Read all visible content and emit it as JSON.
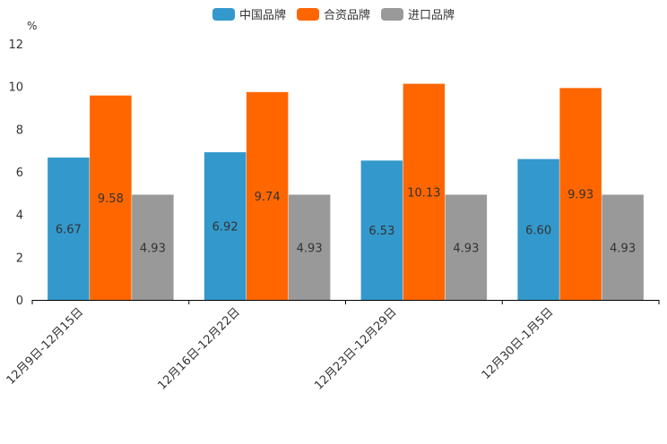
{
  "chart_data": {
    "type": "bar",
    "unit": "%",
    "categories": [
      "12月9日-12月15日",
      "12月16日-12月22日",
      "12月23日-12月29日",
      "12月30日-1月5日"
    ],
    "series": [
      {
        "name": "中国品牌",
        "color": "#3399cc",
        "values": [
          6.67,
          6.92,
          6.53,
          6.6
        ],
        "labels": [
          "6.67",
          "6.92",
          "6.53",
          "6.60"
        ]
      },
      {
        "name": "合资品牌",
        "color": "#ff6600",
        "values": [
          9.58,
          9.74,
          10.13,
          9.93
        ],
        "labels": [
          "9.58",
          "9.74",
          "10.13",
          "9.93"
        ]
      },
      {
        "name": "进口品牌",
        "color": "#999999",
        "values": [
          4.93,
          4.93,
          4.93,
          4.93
        ],
        "labels": [
          "4.93",
          "4.93",
          "4.93",
          "4.93"
        ]
      }
    ],
    "ylim": [
      0,
      12
    ],
    "yticks": [
      0,
      2,
      4,
      6,
      8,
      10,
      12
    ],
    "legend_position": "top-center",
    "grid": false
  }
}
